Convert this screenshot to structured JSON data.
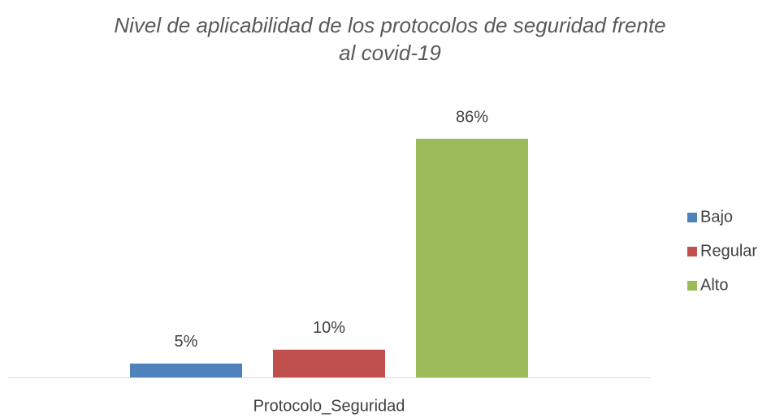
{
  "chart_data": {
    "type": "bar",
    "title": "Nivel de aplicabilidad de los protocolos de seguridad frente al covid-19",
    "categories": [
      "Protocolo_Seguridad"
    ],
    "series": [
      {
        "name": "Bajo",
        "color": "#4f81bd",
        "values": [
          5
        ],
        "value_labels": [
          "5%"
        ]
      },
      {
        "name": "Regular",
        "color": "#c0504d",
        "values": [
          10
        ],
        "value_labels": [
          "10%"
        ]
      },
      {
        "name": "Alto",
        "color": "#9bbb59",
        "values": [
          86
        ],
        "value_labels": [
          "86%"
        ]
      }
    ],
    "legend": "right"
  }
}
